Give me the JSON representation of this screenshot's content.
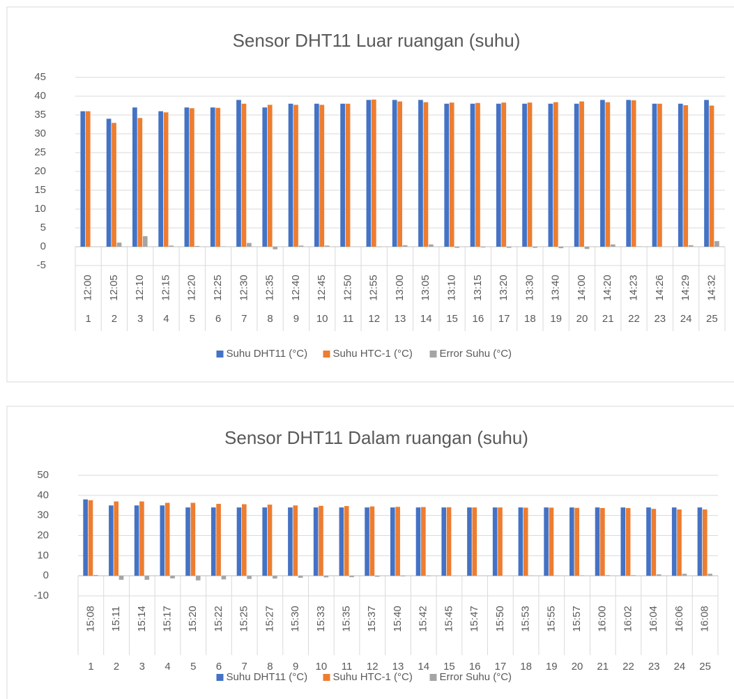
{
  "chart_data": [
    {
      "type": "bar",
      "title": "Sensor DHT11 Luar ruangan (suhu)",
      "categories": [
        "12:00",
        "12:05",
        "12:10",
        "12:15",
        "12:20",
        "12:25",
        "12:30",
        "12:35",
        "12:40",
        "12:45",
        "12:50",
        "12:55",
        "13:00",
        "13:05",
        "13:10",
        "13:15",
        "13:20",
        "13:30",
        "13:40",
        "14:00",
        "14:20",
        "14:23",
        "14:26",
        "14:29",
        "14:32"
      ],
      "category_index": [
        1,
        2,
        3,
        4,
        5,
        6,
        7,
        8,
        9,
        10,
        11,
        12,
        13,
        14,
        15,
        16,
        17,
        18,
        19,
        20,
        21,
        22,
        23,
        24,
        25
      ],
      "series": [
        {
          "name": "Suhu DHT11 (°C)",
          "color": "#4472c4",
          "values": [
            36,
            34,
            37,
            36,
            37,
            37,
            39,
            37,
            38,
            38,
            38,
            39,
            39,
            39,
            38,
            38,
            38,
            38,
            38,
            38,
            39,
            39,
            38,
            38,
            39
          ]
        },
        {
          "name": "Suhu HTC-1 (°C)",
          "color": "#ed7d31",
          "values": [
            36,
            32.9,
            34.2,
            35.7,
            36.8,
            36.9,
            38,
            37.7,
            37.7,
            37.7,
            38,
            39.1,
            38.6,
            38.4,
            38.3,
            38.2,
            38.3,
            38.3,
            38.4,
            38.6,
            38.4,
            38.9,
            38,
            37.6,
            37.5
          ]
        },
        {
          "name": "Error Suhu (°C)",
          "color": "#a5a5a5",
          "values": [
            0,
            1.1,
            2.8,
            0.3,
            0.2,
            0.1,
            1,
            -0.7,
            0.3,
            0.3,
            0,
            -0.1,
            0.4,
            0.6,
            -0.3,
            -0.2,
            -0.3,
            -0.3,
            -0.4,
            -0.6,
            0.6,
            0.1,
            0,
            0.4,
            1.5
          ]
        }
      ],
      "ylim": [
        -5,
        45
      ],
      "yticks": [
        -5,
        0,
        5,
        10,
        15,
        20,
        25,
        30,
        35,
        40,
        45
      ],
      "grid": true,
      "legend": "bottom"
    },
    {
      "type": "bar",
      "title": "Sensor DHT11 Dalam ruangan (suhu)",
      "categories": [
        "15:08",
        "15:11",
        "15:14",
        "15:17",
        "15:20",
        "15:22",
        "15:25",
        "15:27",
        "15:30",
        "15:33",
        "15:35",
        "15:37",
        "15:40",
        "15:42",
        "15:45",
        "15:47",
        "15:50",
        "15:53",
        "15:55",
        "15:57",
        "16:00",
        "16:02",
        "16:04",
        "16:06",
        "16:08"
      ],
      "category_index": [
        1,
        2,
        3,
        4,
        5,
        6,
        7,
        8,
        9,
        10,
        11,
        12,
        13,
        14,
        15,
        16,
        17,
        18,
        19,
        20,
        21,
        22,
        23,
        24,
        25
      ],
      "series": [
        {
          "name": "Suhu DHT11 (°C)",
          "color": "#4472c4",
          "values": [
            38,
            35,
            35,
            35,
            34,
            34,
            34,
            34,
            34,
            34,
            34,
            34,
            34,
            34,
            34,
            34,
            34,
            34,
            34,
            34,
            34,
            34,
            34,
            34,
            34
          ]
        },
        {
          "name": "Suhu HTC-1 (°C)",
          "color": "#ed7d31",
          "values": [
            37.6,
            37,
            37,
            36.3,
            36.3,
            35.8,
            35.6,
            35.4,
            35,
            34.8,
            34.7,
            34.5,
            34.3,
            34.2,
            34.1,
            34,
            34,
            33.9,
            33.9,
            33.8,
            33.7,
            33.7,
            33.3,
            33,
            33
          ]
        },
        {
          "name": "Error Suhu (°C)",
          "color": "#a5a5a5",
          "values": [
            0.4,
            -2,
            -2,
            -1.3,
            -2.3,
            -1.8,
            -1.6,
            -1.4,
            -1,
            -0.8,
            -0.7,
            -0.5,
            -0.3,
            -0.2,
            -0.1,
            0,
            0,
            0.1,
            0.1,
            0.2,
            0.3,
            0.3,
            0.7,
            1,
            1
          ]
        }
      ],
      "ylim": [
        -10,
        50
      ],
      "yticks": [
        -10,
        0,
        10,
        20,
        30,
        40,
        50
      ],
      "grid": true,
      "legend": "bottom"
    }
  ]
}
